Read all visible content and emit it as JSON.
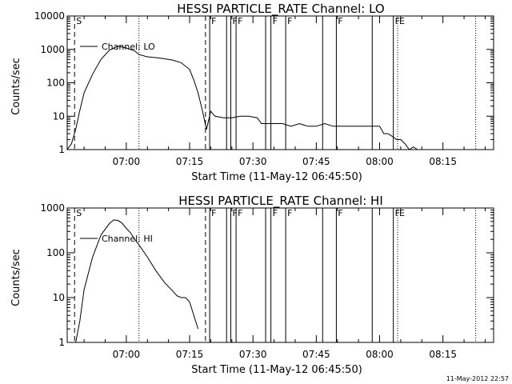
{
  "footer_timestamp": "11-May-2012 22:57",
  "chart_data": [
    {
      "type": "line",
      "title": "HESSI PARTICLE_RATE Channel: LO",
      "xlabel": "Start Time (11-May-12 06:45:50)",
      "ylabel": "Counts/sec",
      "y_scale": "log",
      "ylim": [
        1,
        10000
      ],
      "y_ticks": [
        "1",
        "10",
        "100",
        "1000",
        "10000"
      ],
      "xlim": [
        "06:46:00",
        "08:27:00"
      ],
      "x_ticks": [
        "07:00",
        "07:15",
        "07:30",
        "07:45",
        "08:00",
        "08:15"
      ],
      "grid": false,
      "legend_position": "top-left",
      "series": [
        {
          "name": "Channel: LO",
          "x": [
            "06:46",
            "06:47",
            "06:48",
            "06:49",
            "06:50",
            "06:52",
            "06:54",
            "06:56",
            "06:58",
            "07:00",
            "07:02",
            "07:03",
            "07:05",
            "07:08",
            "07:11",
            "07:13",
            "07:15",
            "07:16",
            "07:17",
            "07:18",
            "07:19",
            "07:20",
            "07:21",
            "07:23",
            "07:25",
            "07:27",
            "07:29",
            "07:31",
            "07:32",
            "07:33",
            "07:35",
            "07:37",
            "07:39",
            "07:41",
            "07:43",
            "07:45",
            "07:47",
            "07:49",
            "07:51",
            "07:53",
            "07:55",
            "07:57",
            "07:59",
            "08:00",
            "08:01",
            "08:02",
            "08:03",
            "08:04",
            "08:05",
            "08:06",
            "08:07",
            "08:08",
            "08:09",
            "08:10",
            "08:11"
          ],
          "y": [
            1,
            1.5,
            4,
            15,
            50,
            180,
            500,
            950,
            1250,
            1100,
            900,
            700,
            600,
            550,
            480,
            400,
            250,
            120,
            50,
            15,
            4,
            14,
            10,
            9,
            9,
            10,
            10,
            9,
            6,
            6,
            6,
            6,
            5,
            6,
            5,
            5,
            6,
            5,
            5,
            5,
            5,
            5,
            5,
            5,
            3,
            3,
            2.5,
            2,
            2,
            1.5,
            1,
            1.2,
            1,
            1,
            1
          ]
        }
      ],
      "vertical_markers": [
        {
          "label": "S",
          "time": "06:47:45",
          "style": "dashed"
        },
        {
          "label": "",
          "time": "07:03:00",
          "style": "dotted"
        },
        {
          "label": "",
          "time": "07:18:45",
          "style": "dashed"
        },
        {
          "label": "F",
          "time": "07:19:45",
          "style": "solid"
        },
        {
          "label": "",
          "time": "07:23:45",
          "style": "solid"
        },
        {
          "label": "F",
          "time": "07:24:45",
          "style": "solid"
        },
        {
          "label": "F",
          "time": "07:26:00",
          "style": "solid"
        },
        {
          "label": "",
          "time": "07:33:00",
          "style": "solid"
        },
        {
          "label": "F",
          "time": "07:34:15",
          "style": "solid"
        },
        {
          "label": "F",
          "time": "07:37:45",
          "style": "solid"
        },
        {
          "label": "",
          "time": "07:46:30",
          "style": "solid"
        },
        {
          "label": "F",
          "time": "07:49:45",
          "style": "solid"
        },
        {
          "label": "",
          "time": "07:58:15",
          "style": "solid"
        },
        {
          "label": "F",
          "time": "08:03:15",
          "style": "solid"
        },
        {
          "label": "E",
          "time": "08:04:15",
          "style": "dotted"
        },
        {
          "label": "",
          "time": "08:22:45",
          "style": "dotted"
        }
      ]
    },
    {
      "type": "line",
      "title": "HESSI PARTICLE_RATE Channel: HI",
      "xlabel": "Start Time (11-May-12 06:45:50)",
      "ylabel": "Counts/sec",
      "y_scale": "log",
      "ylim": [
        1,
        1000
      ],
      "y_ticks": [
        "1",
        "10",
        "100",
        "1000"
      ],
      "xlim": [
        "06:46:00",
        "08:27:00"
      ],
      "x_ticks": [
        "07:00",
        "07:15",
        "07:30",
        "07:45",
        "08:00",
        "08:15"
      ],
      "grid": false,
      "legend_position": "top-left",
      "series": [
        {
          "name": "Channel: HI",
          "x": [
            "06:48",
            "06:49",
            "06:50",
            "06:52",
            "06:54",
            "06:56",
            "06:57",
            "06:58",
            "06:59",
            "07:00",
            "07:01",
            "07:02",
            "07:03",
            "07:05",
            "07:07",
            "07:09",
            "07:11",
            "07:12",
            "07:13",
            "07:14",
            "07:15",
            "07:16",
            "07:17"
          ],
          "y": [
            1,
            3,
            15,
            80,
            250,
            450,
            540,
            530,
            460,
            350,
            280,
            200,
            150,
            80,
            40,
            22,
            14,
            11,
            10,
            10,
            8,
            4,
            2
          ]
        }
      ],
      "vertical_markers": [
        {
          "label": "S",
          "time": "06:47:45",
          "style": "dashed"
        },
        {
          "label": "",
          "time": "07:03:00",
          "style": "dotted"
        },
        {
          "label": "",
          "time": "07:18:45",
          "style": "dashed"
        },
        {
          "label": "F",
          "time": "07:19:45",
          "style": "solid"
        },
        {
          "label": "",
          "time": "07:23:45",
          "style": "solid"
        },
        {
          "label": "F",
          "time": "07:24:45",
          "style": "solid"
        },
        {
          "label": "F",
          "time": "07:26:00",
          "style": "solid"
        },
        {
          "label": "",
          "time": "07:33:00",
          "style": "solid"
        },
        {
          "label": "F",
          "time": "07:34:15",
          "style": "solid"
        },
        {
          "label": "F",
          "time": "07:37:45",
          "style": "solid"
        },
        {
          "label": "",
          "time": "07:46:30",
          "style": "solid"
        },
        {
          "label": "F",
          "time": "07:49:45",
          "style": "solid"
        },
        {
          "label": "",
          "time": "07:58:15",
          "style": "solid"
        },
        {
          "label": "F",
          "time": "08:03:15",
          "style": "solid"
        },
        {
          "label": "E",
          "time": "08:04:15",
          "style": "dotted"
        },
        {
          "label": "",
          "time": "08:22:45",
          "style": "dotted"
        }
      ]
    }
  ]
}
